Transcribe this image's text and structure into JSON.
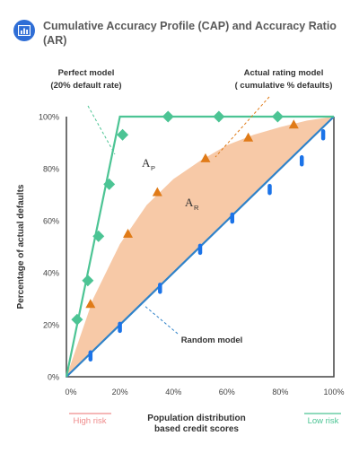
{
  "title": "Cumulative Accuracy Profile (CAP) and Accuracy Ratio (AR)",
  "header_icon": "bar-chart-icon",
  "chart_data": {
    "type": "line",
    "title": "Cumulative Accuracy Profile (CAP) and Accuracy Ratio (AR)",
    "xlabel_lines": [
      "Population distribution",
      "based credit scores"
    ],
    "ylabel": "Percentage of actual defaults",
    "xlim": [
      0,
      100
    ],
    "ylim": [
      0,
      100
    ],
    "xticks": [
      "0%",
      "20%",
      "40%",
      "60%",
      "80%",
      "100%"
    ],
    "yticks": [
      "0%",
      "20%",
      "40%",
      "60%",
      "80%",
      "100%"
    ],
    "x_left_note": "High risk",
    "x_right_note": "Low risk",
    "area_labels": {
      "perfect": {
        "main": "A",
        "sub": "P"
      },
      "rating": {
        "main": "A",
        "sub": "R"
      }
    },
    "colors": {
      "perfect": "#4cc494",
      "rating_marker": "#e07b18",
      "random": "#2f82c9",
      "random_marker": "#1b73e8",
      "shade": "#f7c9a7",
      "axis": "#444444",
      "high_risk": "#ef8c8c",
      "low_risk": "#4cc494"
    },
    "series": [
      {
        "name": "Perfect model",
        "label_lines": [
          "Perfect model",
          "(20% default rate)"
        ],
        "line": [
          [
            0,
            0
          ],
          [
            20,
            100
          ],
          [
            100,
            100
          ]
        ],
        "markers": [
          [
            4,
            22
          ],
          [
            8,
            37
          ],
          [
            12,
            54
          ],
          [
            16,
            74
          ],
          [
            21,
            93
          ],
          [
            38,
            100
          ],
          [
            57,
            100
          ],
          [
            79,
            100
          ]
        ]
      },
      {
        "name": "Actual rating model",
        "label_lines": [
          "Actual rating model",
          "( cumulative % defaults)"
        ],
        "line": [
          [
            0,
            0
          ],
          [
            4,
            12
          ],
          [
            10,
            30
          ],
          [
            20,
            51
          ],
          [
            30,
            66
          ],
          [
            40,
            76
          ],
          [
            50,
            83
          ],
          [
            60,
            89
          ],
          [
            70,
            93
          ],
          [
            80,
            96
          ],
          [
            90,
            98.5
          ],
          [
            100,
            100
          ]
        ],
        "markers": [
          [
            9,
            28
          ],
          [
            23,
            55
          ],
          [
            34,
            71
          ],
          [
            52,
            84
          ],
          [
            68,
            92
          ],
          [
            85,
            97
          ]
        ]
      },
      {
        "name": "Random model",
        "label_lines": [
          "Random model"
        ],
        "line": [
          [
            0,
            0
          ],
          [
            100,
            100
          ]
        ],
        "markers": [
          [
            9,
            8
          ],
          [
            20,
            19
          ],
          [
            35,
            34
          ],
          [
            50,
            49
          ],
          [
            62,
            61
          ],
          [
            76,
            72
          ],
          [
            88,
            83
          ],
          [
            96,
            93
          ]
        ]
      }
    ]
  }
}
